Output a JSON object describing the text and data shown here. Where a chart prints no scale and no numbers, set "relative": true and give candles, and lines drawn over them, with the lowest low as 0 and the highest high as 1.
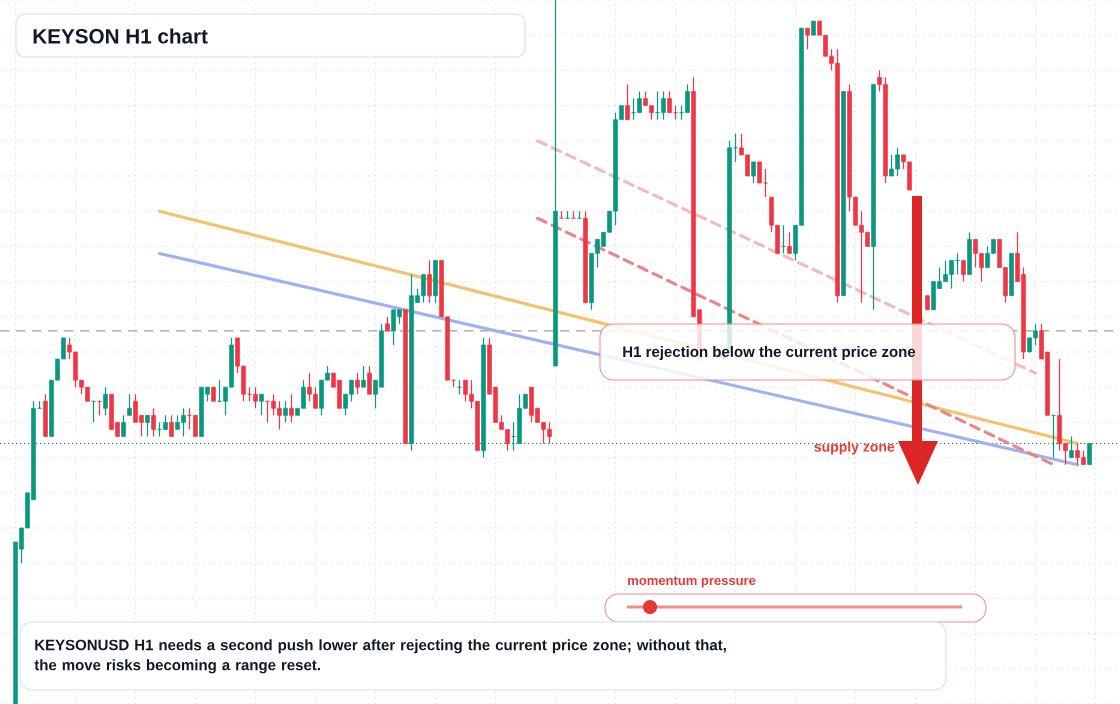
{
  "chart_data": {
    "type": "candlestick",
    "relative": true,
    "title": "KEYSON H1 chart",
    "categories": [
      null,
      null,
      null,
      null,
      null,
      null,
      null,
      null,
      null,
      null,
      null,
      null,
      null,
      null,
      null,
      null,
      null,
      null,
      null,
      null,
      null,
      null,
      null,
      null,
      null,
      null,
      null,
      null,
      null,
      null,
      null,
      null,
      null,
      null,
      null,
      null,
      null,
      null,
      null,
      null,
      null,
      null,
      null,
      null,
      null,
      null,
      null,
      null,
      null,
      null,
      null,
      null,
      null,
      null,
      null,
      null,
      null,
      null,
      null,
      null,
      null,
      null,
      null,
      null,
      null,
      null,
      null,
      null,
      null,
      null,
      null,
      null,
      null,
      null,
      null,
      null,
      null,
      null,
      null,
      null,
      null,
      null,
      null,
      null,
      null,
      null,
      null,
      null,
      null,
      null,
      null,
      null,
      null,
      null,
      null,
      null,
      null,
      null,
      null,
      null,
      null,
      null,
      null,
      null,
      null,
      null,
      null,
      null,
      null,
      null,
      null,
      null,
      null,
      null,
      null,
      null,
      null,
      null,
      null,
      null,
      null,
      null,
      null,
      null,
      null,
      null,
      null,
      null,
      null,
      null,
      null,
      null,
      null,
      null,
      null,
      null,
      null,
      null,
      null,
      null,
      null,
      null,
      null,
      null,
      null,
      null,
      null,
      null,
      null,
      null,
      null,
      null,
      null,
      null,
      null,
      null,
      null,
      null,
      null,
      null,
      null,
      null,
      null,
      null,
      null,
      null,
      null,
      null,
      null,
      null,
      null,
      null,
      null,
      null,
      null,
      null,
      null,
      null,
      null,
      null
    ],
    "ohlc": [
      [
        0,
        0.23,
        0,
        0.23
      ],
      [
        0.22,
        0.25,
        0.2,
        0.25
      ],
      [
        0.25,
        0.3,
        0.25,
        0.3
      ],
      [
        0.29,
        0.43,
        0.29,
        0.42
      ],
      [
        0.42,
        0.43,
        0.42,
        0.42
      ],
      [
        0.43,
        0.44,
        0.38,
        0.38
      ],
      [
        0.38,
        0.46,
        0.38,
        0.46
      ],
      [
        0.46,
        0.49,
        0.46,
        0.49
      ],
      [
        0.49,
        0.52,
        0.49,
        0.52
      ],
      [
        0.51,
        0.52,
        0.49,
        0.5
      ],
      [
        0.5,
        0.5,
        0.45,
        0.46
      ],
      [
        0.46,
        0.46,
        0.44,
        0.45
      ],
      [
        0.45,
        0.45,
        0.43,
        0.43
      ],
      [
        0.43,
        0.43,
        0.4,
        0.43
      ],
      [
        0.43,
        0.43,
        0.41,
        0.43
      ],
      [
        0.42,
        0.45,
        0.41,
        0.44
      ],
      [
        0.44,
        0.44,
        0.39,
        0.39
      ],
      [
        0.4,
        0.4,
        0.38,
        0.38
      ],
      [
        0.38,
        0.41,
        0.38,
        0.4
      ],
      [
        0.41,
        0.44,
        0.41,
        0.42
      ],
      [
        0.43,
        0.44,
        0.4,
        0.4
      ],
      [
        0.41,
        0.41,
        0.38,
        0.4
      ],
      [
        0.4,
        0.41,
        0.38,
        0.41
      ],
      [
        0.41,
        0.42,
        0.38,
        0.39
      ],
      [
        0.39,
        0.4,
        0.38,
        0.39
      ],
      [
        0.39,
        0.41,
        0.39,
        0.4
      ],
      [
        0.4,
        0.41,
        0.38,
        0.38
      ],
      [
        0.39,
        0.41,
        0.39,
        0.4
      ],
      [
        0.4,
        0.42,
        0.38,
        0.41
      ],
      [
        0.41,
        0.42,
        0.39,
        0.41
      ],
      [
        0.41,
        0.41,
        0.38,
        0.38
      ],
      [
        0.38,
        0.45,
        0.38,
        0.45
      ],
      [
        0.44,
        0.45,
        0.43,
        0.45
      ],
      [
        0.45,
        0.45,
        0.43,
        0.43
      ],
      [
        0.43,
        0.46,
        0.43,
        0.43
      ],
      [
        0.43,
        0.45,
        0.41,
        0.45
      ],
      [
        0.45,
        0.52,
        0.45,
        0.51
      ],
      [
        0.52,
        0.52,
        0.47,
        0.48
      ],
      [
        0.48,
        0.48,
        0.43,
        0.44
      ],
      [
        0.44,
        0.45,
        0.43,
        0.44
      ],
      [
        0.44,
        0.45,
        0.42,
        0.43
      ],
      [
        0.43,
        0.44,
        0.41,
        0.44
      ],
      [
        0.43,
        0.43,
        0.4,
        0.43
      ],
      [
        0.43,
        0.44,
        0.41,
        0.42
      ],
      [
        0.42,
        0.43,
        0.39,
        0.41
      ],
      [
        0.41,
        0.43,
        0.4,
        0.42
      ],
      [
        0.42,
        0.44,
        0.4,
        0.41
      ],
      [
        0.41,
        0.42,
        0.41,
        0.42
      ],
      [
        0.42,
        0.46,
        0.42,
        0.45
      ],
      [
        0.45,
        0.47,
        0.43,
        0.44
      ],
      [
        0.44,
        0.45,
        0.42,
        0.42
      ],
      [
        0.42,
        0.46,
        0.41,
        0.46
      ],
      [
        0.46,
        0.48,
        0.46,
        0.47
      ],
      [
        0.47,
        0.47,
        0.45,
        0.45
      ],
      [
        0.46,
        0.46,
        0.42,
        0.42
      ],
      [
        0.42,
        0.44,
        0.41,
        0.44
      ],
      [
        0.44,
        0.46,
        0.43,
        0.46
      ],
      [
        0.46,
        0.47,
        0.44,
        0.45
      ],
      [
        0.45,
        0.48,
        0.45,
        0.46
      ],
      [
        0.47,
        0.48,
        0.44,
        0.44
      ],
      [
        0.44,
        0.46,
        0.42,
        0.46
      ],
      [
        0.45,
        0.54,
        0.45,
        0.53
      ],
      [
        0.54,
        0.55,
        0.53,
        0.53
      ],
      [
        0.53,
        0.56,
        0.51,
        0.56
      ],
      [
        0.55,
        0.56,
        0.54,
        0.56
      ],
      [
        0.56,
        0.56,
        0.37,
        0.37
      ],
      [
        0.37,
        0.61,
        0.36,
        0.58
      ],
      [
        0.57,
        0.59,
        0.57,
        0.58
      ],
      [
        0.58,
        0.61,
        0.57,
        0.61
      ],
      [
        0.61,
        0.63,
        0.57,
        0.58
      ],
      [
        0.58,
        0.63,
        0.57,
        0.63
      ],
      [
        0.63,
        0.63,
        0.55,
        0.55
      ],
      [
        0.55,
        0.55,
        0.46,
        0.46
      ],
      [
        0.46,
        0.46,
        0.45,
        0.46
      ],
      [
        0.45,
        0.46,
        0.44,
        0.45
      ],
      [
        0.46,
        0.46,
        0.43,
        0.44
      ],
      [
        0.44,
        0.46,
        0.42,
        0.43
      ],
      [
        0.43,
        0.43,
        0.36,
        0.36
      ],
      [
        0.36,
        0.52,
        0.35,
        0.51
      ],
      [
        0.51,
        0.52,
        0.44,
        0.44
      ],
      [
        0.45,
        0.45,
        0.4,
        0.4
      ],
      [
        0.4,
        0.41,
        0.39,
        0.39
      ],
      [
        0.39,
        0.39,
        0.36,
        0.37
      ],
      [
        0.38,
        0.4,
        0.36,
        0.38
      ],
      [
        0.37,
        0.44,
        0.37,
        0.42
      ],
      [
        0.42,
        0.44,
        0.42,
        0.44
      ],
      [
        0.45,
        0.45,
        0.4,
        0.41
      ],
      [
        0.42,
        0.42,
        0.4,
        0.4
      ],
      [
        0.4,
        0.4,
        0.37,
        0.39
      ],
      [
        0.39,
        0.4,
        0.37,
        0.38
      ],
      [
        0.48,
        1,
        0.48,
        0.7
      ],
      [
        0.69,
        0.7,
        0.69,
        0.69
      ],
      [
        0.69,
        0.7,
        0.69,
        0.69
      ],
      [
        0.69,
        0.7,
        0.69,
        0.69
      ],
      [
        0.69,
        0.7,
        0.69,
        0.69
      ],
      [
        0.69,
        0.7,
        0.57,
        0.57
      ],
      [
        0.57,
        0.64,
        0.56,
        0.64
      ],
      [
        0.64,
        0.66,
        0.62,
        0.66
      ],
      [
        0.65,
        0.67,
        0.65,
        0.67
      ],
      [
        0.67,
        0.7,
        0.67,
        0.7
      ],
      [
        0.7,
        0.84,
        0.68,
        0.83
      ],
      [
        0.83,
        0.85,
        0.83,
        0.85
      ],
      [
        0.85,
        0.88,
        0.83,
        0.83
      ],
      [
        0.84,
        0.86,
        0.83,
        0.84
      ],
      [
        0.84,
        0.87,
        0.84,
        0.86
      ],
      [
        0.86,
        0.87,
        0.85,
        0.85
      ],
      [
        0.85,
        0.85,
        0.83,
        0.84
      ],
      [
        0.84,
        0.87,
        0.83,
        0.84
      ],
      [
        0.84,
        0.87,
        0.83,
        0.86
      ],
      [
        0.86,
        0.87,
        0.84,
        0.84
      ],
      [
        0.84,
        0.85,
        0.83,
        0.84
      ],
      [
        0.84,
        0.85,
        0.83,
        0.84
      ],
      [
        0.84,
        0.88,
        0.84,
        0.87
      ],
      [
        0.87,
        0.89,
        0.55,
        0.55
      ],
      [
        0.56,
        0.56,
        0.49,
        0.49
      ],
      null,
      null,
      null,
      [
        0.49,
        0.5,
        0.49,
        0.5
      ],
      [
        0.5,
        0.8,
        0.5,
        0.79
      ],
      [
        0.79,
        0.81,
        0.77,
        0.79
      ],
      [
        0.79,
        0.81,
        0.78,
        0.78
      ],
      [
        0.78,
        0.78,
        0.75,
        0.75
      ],
      [
        0.75,
        0.77,
        0.74,
        0.77
      ],
      [
        0.77,
        0.77,
        0.74,
        0.74
      ],
      [
        0.74,
        0.76,
        0.72,
        0.74
      ],
      [
        0.72,
        0.72,
        0.67,
        0.68
      ],
      [
        0.68,
        0.68,
        0.64,
        0.64
      ],
      [
        0.65,
        0.68,
        0.64,
        0.65
      ],
      [
        0.65,
        0.67,
        0.64,
        0.64
      ],
      [
        0.64,
        0.68,
        0.63,
        0.68
      ],
      [
        0.68,
        0.96,
        0.68,
        0.96
      ],
      [
        0.96,
        0.96,
        0.93,
        0.95
      ],
      [
        0.95,
        0.97,
        0.95,
        0.97
      ],
      [
        0.97,
        0.97,
        0.95,
        0.95
      ],
      [
        0.95,
        0.95,
        0.92,
        0.92
      ],
      [
        0.92,
        0.93,
        0.9,
        0.91
      ],
      [
        0.91,
        0.93,
        0.57,
        0.58
      ],
      [
        0.58,
        0.87,
        0.58,
        0.87
      ],
      [
        0.87,
        0.88,
        0.7,
        0.72
      ],
      [
        0.72,
        0.72,
        0.68,
        0.68
      ],
      [
        0.68,
        0.7,
        0.57,
        0.67
      ],
      [
        0.67,
        0.67,
        0.65,
        0.65
      ],
      [
        0.65,
        0.88,
        0.56,
        0.88
      ],
      [
        0.89,
        0.9,
        0.87,
        0.88
      ],
      [
        0.88,
        0.89,
        0.74,
        0.75
      ],
      [
        0.75,
        0.78,
        0.75,
        0.76
      ],
      [
        0.76,
        0.79,
        0.75,
        0.78
      ],
      [
        0.78,
        0.78,
        0.76,
        0.77
      ],
      [
        0.77,
        0.77,
        0.73,
        0.73
      ],
      null,
      null,
      [
        0.58,
        0.58,
        0.56,
        0.56
      ],
      [
        0.56,
        0.6,
        0.56,
        0.6
      ],
      [
        0.59,
        0.62,
        0.59,
        0.6
      ],
      [
        0.6,
        0.63,
        0.6,
        0.61
      ],
      [
        0.61,
        0.63,
        0.59,
        0.63
      ],
      [
        0.63,
        0.64,
        0.61,
        0.63
      ],
      [
        0.63,
        0.63,
        0.6,
        0.61
      ],
      [
        0.61,
        0.67,
        0.61,
        0.66
      ],
      [
        0.66,
        0.66,
        0.62,
        0.64
      ],
      [
        0.64,
        0.64,
        0.6,
        0.62
      ],
      [
        0.62,
        0.65,
        0.62,
        0.64
      ],
      [
        0.64,
        0.66,
        0.64,
        0.66
      ],
      [
        0.66,
        0.66,
        0.62,
        0.62
      ],
      [
        0.62,
        0.62,
        0.57,
        0.58
      ],
      [
        0.58,
        0.64,
        0.58,
        0.64
      ],
      [
        0.64,
        0.67,
        0.6,
        0.6
      ],
      [
        0.61,
        0.62,
        0.49,
        0.5
      ],
      [
        0.5,
        0.52,
        0.5,
        0.52
      ],
      [
        0.52,
        0.54,
        0.51,
        0.53
      ],
      [
        0.53,
        0.54,
        0.49,
        0.49
      ],
      [
        0.5,
        0.5,
        0.41,
        0.41
      ],
      [
        0.41,
        0.41,
        0.35,
        0.41
      ],
      [
        0.41,
        0.49,
        0.36,
        0.37
      ],
      [
        0.37,
        0.37,
        0.34,
        0.36
      ],
      [
        0.35,
        0.38,
        0.35,
        0.36
      ],
      [
        0.36,
        0.37,
        0.34,
        0.35
      ],
      [
        0.35,
        0.36,
        0.34,
        0.34
      ],
      [
        0.34,
        0.37,
        0.34,
        0.37
      ]
    ],
    "colors": [
      "#089981",
      "#089981",
      "#089981",
      "#089981",
      "#089981",
      "#f23645",
      "#089981",
      "#089981",
      "#089981",
      "#f23645",
      "#f23645",
      "#f23645",
      "#f23645",
      "#089981",
      "#f23645",
      "#089981",
      "#f23645",
      "#f23645",
      "#089981",
      "#089981",
      "#f23645",
      "#f23645",
      "#089981",
      "#f23645",
      "#089981",
      "#089981",
      "#f23645",
      "#089981",
      "#089981",
      "#f23645",
      "#f23645",
      "#089981",
      "#089981",
      "#f23645",
      "#089981",
      "#089981",
      "#089981",
      "#f23645",
      "#f23645",
      "#f23645",
      "#f23645",
      "#089981",
      "#f23645",
      "#f23645",
      "#f23645",
      "#089981",
      "#f23645",
      "#089981",
      "#089981",
      "#f23645",
      "#f23645",
      "#089981",
      "#089981",
      "#f23645",
      "#f23645",
      "#089981",
      "#089981",
      "#f23645",
      "#089981",
      "#f23645",
      "#089981",
      "#089981",
      "#f23645",
      "#089981",
      "#089981",
      "#f23645",
      "#089981",
      "#089981",
      "#089981",
      "#f23645",
      "#089981",
      "#f23645",
      "#f23645",
      "#f23645",
      "#089981",
      "#f23645",
      "#f23645",
      "#f23645",
      "#089981",
      "#f23645",
      "#f23645",
      "#f23645",
      "#f23645",
      "#089981",
      "#089981",
      "#089981",
      "#f23645",
      "#f23645",
      "#f23645",
      "#f23645",
      "#089981",
      "#f23645",
      "#089981",
      "#f23645",
      "#089981",
      "#f23645",
      "#089981",
      "#089981",
      "#089981",
      "#089981",
      "#089981",
      "#089981",
      "#f23645",
      "#089981",
      "#089981",
      "#f23645",
      "#f23645",
      "#089981",
      "#089981",
      "#f23645",
      "#f23645",
      "#089981",
      "#089981",
      "#f23645",
      "#f23645",
      null,
      null,
      null,
      "#089981",
      "#089981",
      "#089981",
      "#f23645",
      "#f23645",
      "#089981",
      "#f23645",
      "#f23645",
      "#f23645",
      "#f23645",
      "#089981",
      "#f23645",
      "#089981",
      "#089981",
      "#f23645",
      "#089981",
      "#f23645",
      "#f23645",
      "#f23645",
      "#f23645",
      "#089981",
      "#f23645",
      "#f23645",
      "#f23645",
      "#f23645",
      "#089981",
      "#f23645",
      "#f23645",
      "#089981",
      "#089981",
      "#f23645",
      "#f23645",
      null,
      null,
      "#f23645",
      "#089981",
      "#089981",
      "#089981",
      "#089981",
      "#089981",
      "#f23645",
      "#089981",
      "#f23645",
      "#f23645",
      "#089981",
      "#089981",
      "#f23645",
      "#f23645",
      "#089981",
      "#f23645",
      "#f23645",
      "#089981",
      "#089981",
      "#f23645",
      "#f23645",
      "#089981",
      "#f23645",
      "#f23645",
      "#089981",
      "#f23645",
      "#f23645",
      "#089981"
    ],
    "series": [
      {
        "type": "line",
        "color": "#f7c06a",
        "line_style": "solid",
        "values": [
          null,
          null,
          null,
          null,
          null,
          null,
          null,
          null,
          null,
          null,
          null,
          null,
          null,
          null,
          null,
          null,
          null,
          null,
          null,
          null,
          null,
          null,
          null,
          null,
          0.7,
          null,
          null,
          null,
          null,
          null,
          null,
          null,
          null,
          null,
          null,
          null,
          null,
          null,
          null,
          null,
          null,
          null,
          null,
          null,
          null,
          null,
          null,
          null,
          null,
          null,
          null,
          null,
          null,
          null,
          null,
          null,
          null,
          null,
          null,
          null,
          null,
          null,
          null,
          null,
          null,
          null,
          null,
          null,
          null,
          null,
          null,
          null,
          null,
          null,
          null,
          null,
          null,
          null,
          null,
          null,
          null,
          null,
          null,
          null,
          null,
          null,
          null,
          null,
          null,
          null,
          null,
          null,
          null,
          null,
          null,
          null,
          null,
          null,
          null,
          null,
          null,
          null,
          null,
          null,
          null,
          null,
          null,
          null,
          null,
          null,
          null,
          null,
          null,
          null,
          null,
          null,
          null,
          null,
          null,
          null,
          null,
          null,
          null,
          null,
          null,
          null,
          null,
          null,
          null,
          null,
          null,
          null,
          null,
          null,
          null,
          null,
          null,
          null,
          null,
          null,
          null,
          null,
          null,
          null,
          null,
          null,
          null,
          null,
          null,
          null,
          null,
          null,
          null,
          null,
          null,
          null,
          null,
          null,
          null,
          null,
          null,
          null,
          null,
          null,
          null,
          null,
          null,
          null,
          null,
          null,
          null,
          null,
          null,
          null,
          null,
          null,
          null,
          0.37,
          null,
          null
        ]
      },
      {
        "type": "line",
        "color": "#9db2f3",
        "line_style": "solid",
        "values": [
          null,
          null,
          null,
          null,
          null,
          null,
          null,
          null,
          null,
          null,
          null,
          null,
          null,
          null,
          null,
          null,
          null,
          null,
          null,
          null,
          null,
          null,
          null,
          null,
          0.64,
          null,
          null,
          null,
          null,
          null,
          null,
          null,
          null,
          null,
          null,
          null,
          null,
          null,
          null,
          null,
          null,
          null,
          null,
          null,
          null,
          null,
          null,
          null,
          null,
          null,
          null,
          null,
          null,
          null,
          null,
          null,
          null,
          null,
          null,
          null,
          null,
          null,
          null,
          null,
          null,
          null,
          null,
          null,
          null,
          null,
          null,
          null,
          null,
          null,
          null,
          null,
          null,
          null,
          null,
          null,
          null,
          null,
          null,
          null,
          null,
          null,
          null,
          null,
          null,
          null,
          null,
          null,
          null,
          null,
          null,
          null,
          null,
          null,
          null,
          null,
          null,
          null,
          null,
          null,
          null,
          null,
          null,
          null,
          null,
          null,
          null,
          null,
          null,
          null,
          null,
          null,
          null,
          null,
          null,
          null,
          null,
          null,
          null,
          null,
          null,
          null,
          null,
          null,
          null,
          null,
          null,
          null,
          null,
          null,
          null,
          null,
          null,
          null,
          null,
          null,
          null,
          null,
          null,
          null,
          null,
          null,
          null,
          null,
          null,
          null,
          null,
          null,
          null,
          null,
          null,
          null,
          null,
          null,
          null,
          null,
          null,
          null,
          null,
          null,
          null,
          null,
          null,
          null,
          null,
          null,
          null,
          null,
          null,
          null,
          null,
          null,
          null,
          0.34,
          null,
          null
        ]
      },
      {
        "type": "line",
        "color": "#e98585",
        "line_style": "dashed",
        "values": [
          null,
          null,
          null,
          null,
          null,
          null,
          null,
          null,
          null,
          null,
          null,
          null,
          null,
          null,
          null,
          null,
          null,
          null,
          null,
          null,
          null,
          null,
          null,
          null,
          null,
          null,
          null,
          null,
          null,
          null,
          null,
          null,
          null,
          null,
          null,
          null,
          null,
          null,
          null,
          null,
          null,
          null,
          null,
          null,
          null,
          null,
          null,
          null,
          null,
          null,
          null,
          null,
          null,
          null,
          null,
          null,
          null,
          null,
          null,
          null,
          null,
          null,
          null,
          null,
          null,
          null,
          null,
          null,
          null,
          null,
          null,
          null,
          null,
          null,
          null,
          null,
          null,
          null,
          null,
          null,
          null,
          null,
          null,
          null,
          null,
          null,
          null,
          0.69,
          null,
          null,
          null,
          null,
          null,
          null,
          null,
          null,
          null,
          null,
          null,
          null,
          null,
          null,
          null,
          null,
          null,
          null,
          null,
          null,
          null,
          null,
          null,
          null,
          null,
          null,
          null,
          null,
          null,
          null,
          null,
          null,
          null,
          null,
          null,
          null,
          null,
          null,
          null,
          null,
          null,
          null,
          null,
          null,
          null,
          null,
          null,
          null,
          null,
          null,
          null,
          null,
          null,
          null,
          null,
          null,
          null,
          null,
          null,
          null,
          null,
          null,
          null,
          null,
          null,
          null,
          null,
          null,
          null,
          null,
          null,
          null,
          null,
          null,
          null,
          null,
          null,
          null,
          null,
          null,
          null,
          null,
          null,
          null,
          null,
          0.34,
          null,
          null,
          null,
          null,
          null,
          null
        ]
      },
      {
        "type": "line",
        "color": "#f5b9b9",
        "line_style": "dashed",
        "values": [
          null,
          null,
          null,
          null,
          null,
          null,
          null,
          null,
          null,
          null,
          null,
          null,
          null,
          null,
          null,
          null,
          null,
          null,
          null,
          null,
          null,
          null,
          null,
          null,
          null,
          null,
          null,
          null,
          null,
          null,
          null,
          null,
          null,
          null,
          null,
          null,
          null,
          null,
          null,
          null,
          null,
          null,
          null,
          null,
          null,
          null,
          null,
          null,
          null,
          null,
          null,
          null,
          null,
          null,
          null,
          null,
          null,
          null,
          null,
          null,
          null,
          null,
          null,
          null,
          null,
          null,
          null,
          null,
          null,
          null,
          null,
          null,
          null,
          null,
          null,
          null,
          null,
          null,
          null,
          null,
          null,
          null,
          null,
          null,
          null,
          null,
          null,
          0.8,
          null,
          null,
          null,
          null,
          null,
          null,
          null,
          null,
          null,
          null,
          null,
          null,
          null,
          null,
          null,
          null,
          null,
          null,
          null,
          null,
          null,
          null,
          null,
          null,
          null,
          null,
          null,
          null,
          null,
          null,
          null,
          null,
          null,
          null,
          null,
          null,
          null,
          null,
          null,
          null,
          null,
          null,
          null,
          null,
          null,
          null,
          null,
          null,
          null,
          null,
          null,
          null,
          null,
          null,
          null,
          null,
          null,
          null,
          null,
          null,
          null,
          null,
          null,
          null,
          null,
          null,
          null,
          null,
          null,
          null,
          null,
          null,
          null,
          null,
          null,
          null,
          null,
          null,
          null,
          null,
          null,
          null,
          0.47,
          null,
          null,
          null,
          null,
          null,
          null,
          null,
          null,
          null
        ]
      }
    ],
    "ref_lines": [
      {
        "axis": "y",
        "value": 0.53,
        "color": "#9e9e9e",
        "line_style": "dashed"
      },
      {
        "axis": "y",
        "value": 0.37,
        "color": "#2f7f6f",
        "line_style": "dotted"
      }
    ],
    "grid": true,
    "annotations": [
      "H1 rejection below the current price zone",
      "supply zone",
      "momentum pressure",
      "KEYSONUSD H1 needs a second push lower after rejecting the current price zone; without that, the move risks becoming a range reset."
    ]
  }
}
